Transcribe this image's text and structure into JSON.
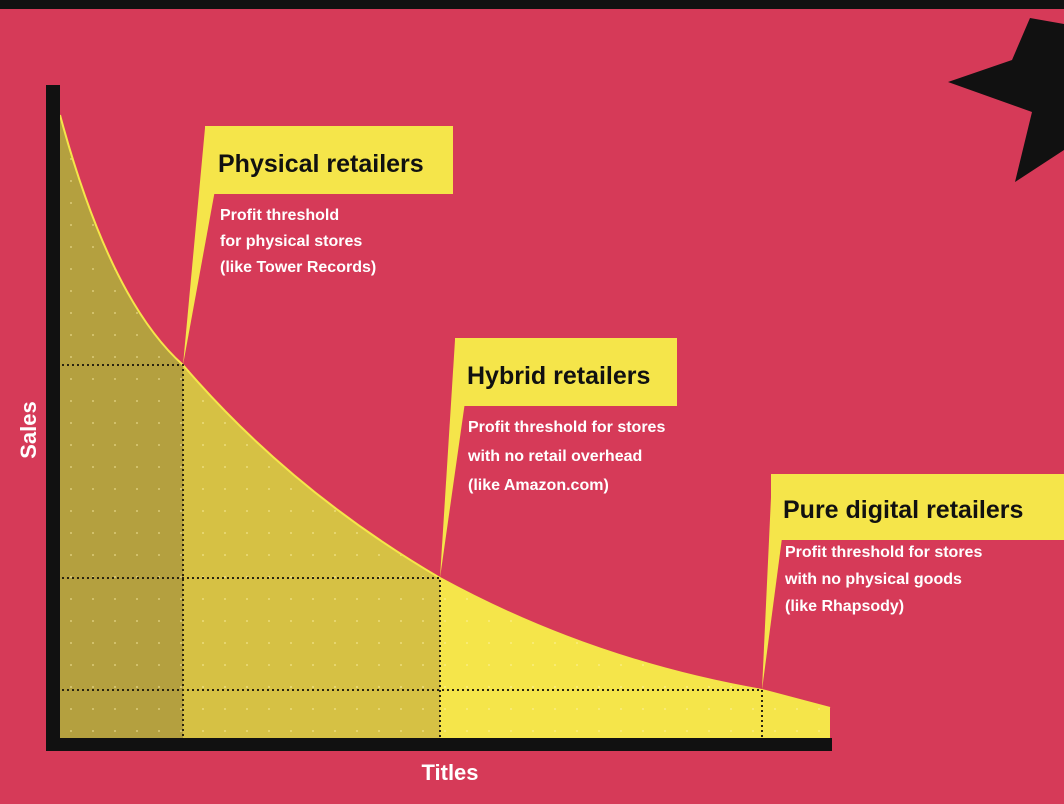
{
  "axes": {
    "y_label": "Sales",
    "x_label": "Titles"
  },
  "callouts": [
    {
      "title": "Physical retailers",
      "lines": [
        "Profit threshold",
        "for physical stores",
        "(like Tower Records)"
      ]
    },
    {
      "title": "Hybrid retailers",
      "lines": [
        "Profit threshold for stores",
        "with no retail overhead",
        "(like Amazon.com)"
      ]
    },
    {
      "title": "Pure digital retailers",
      "lines": [
        "Profit threshold for stores",
        "with no physical goods",
        "(like Rhapsody)"
      ]
    }
  ]
}
